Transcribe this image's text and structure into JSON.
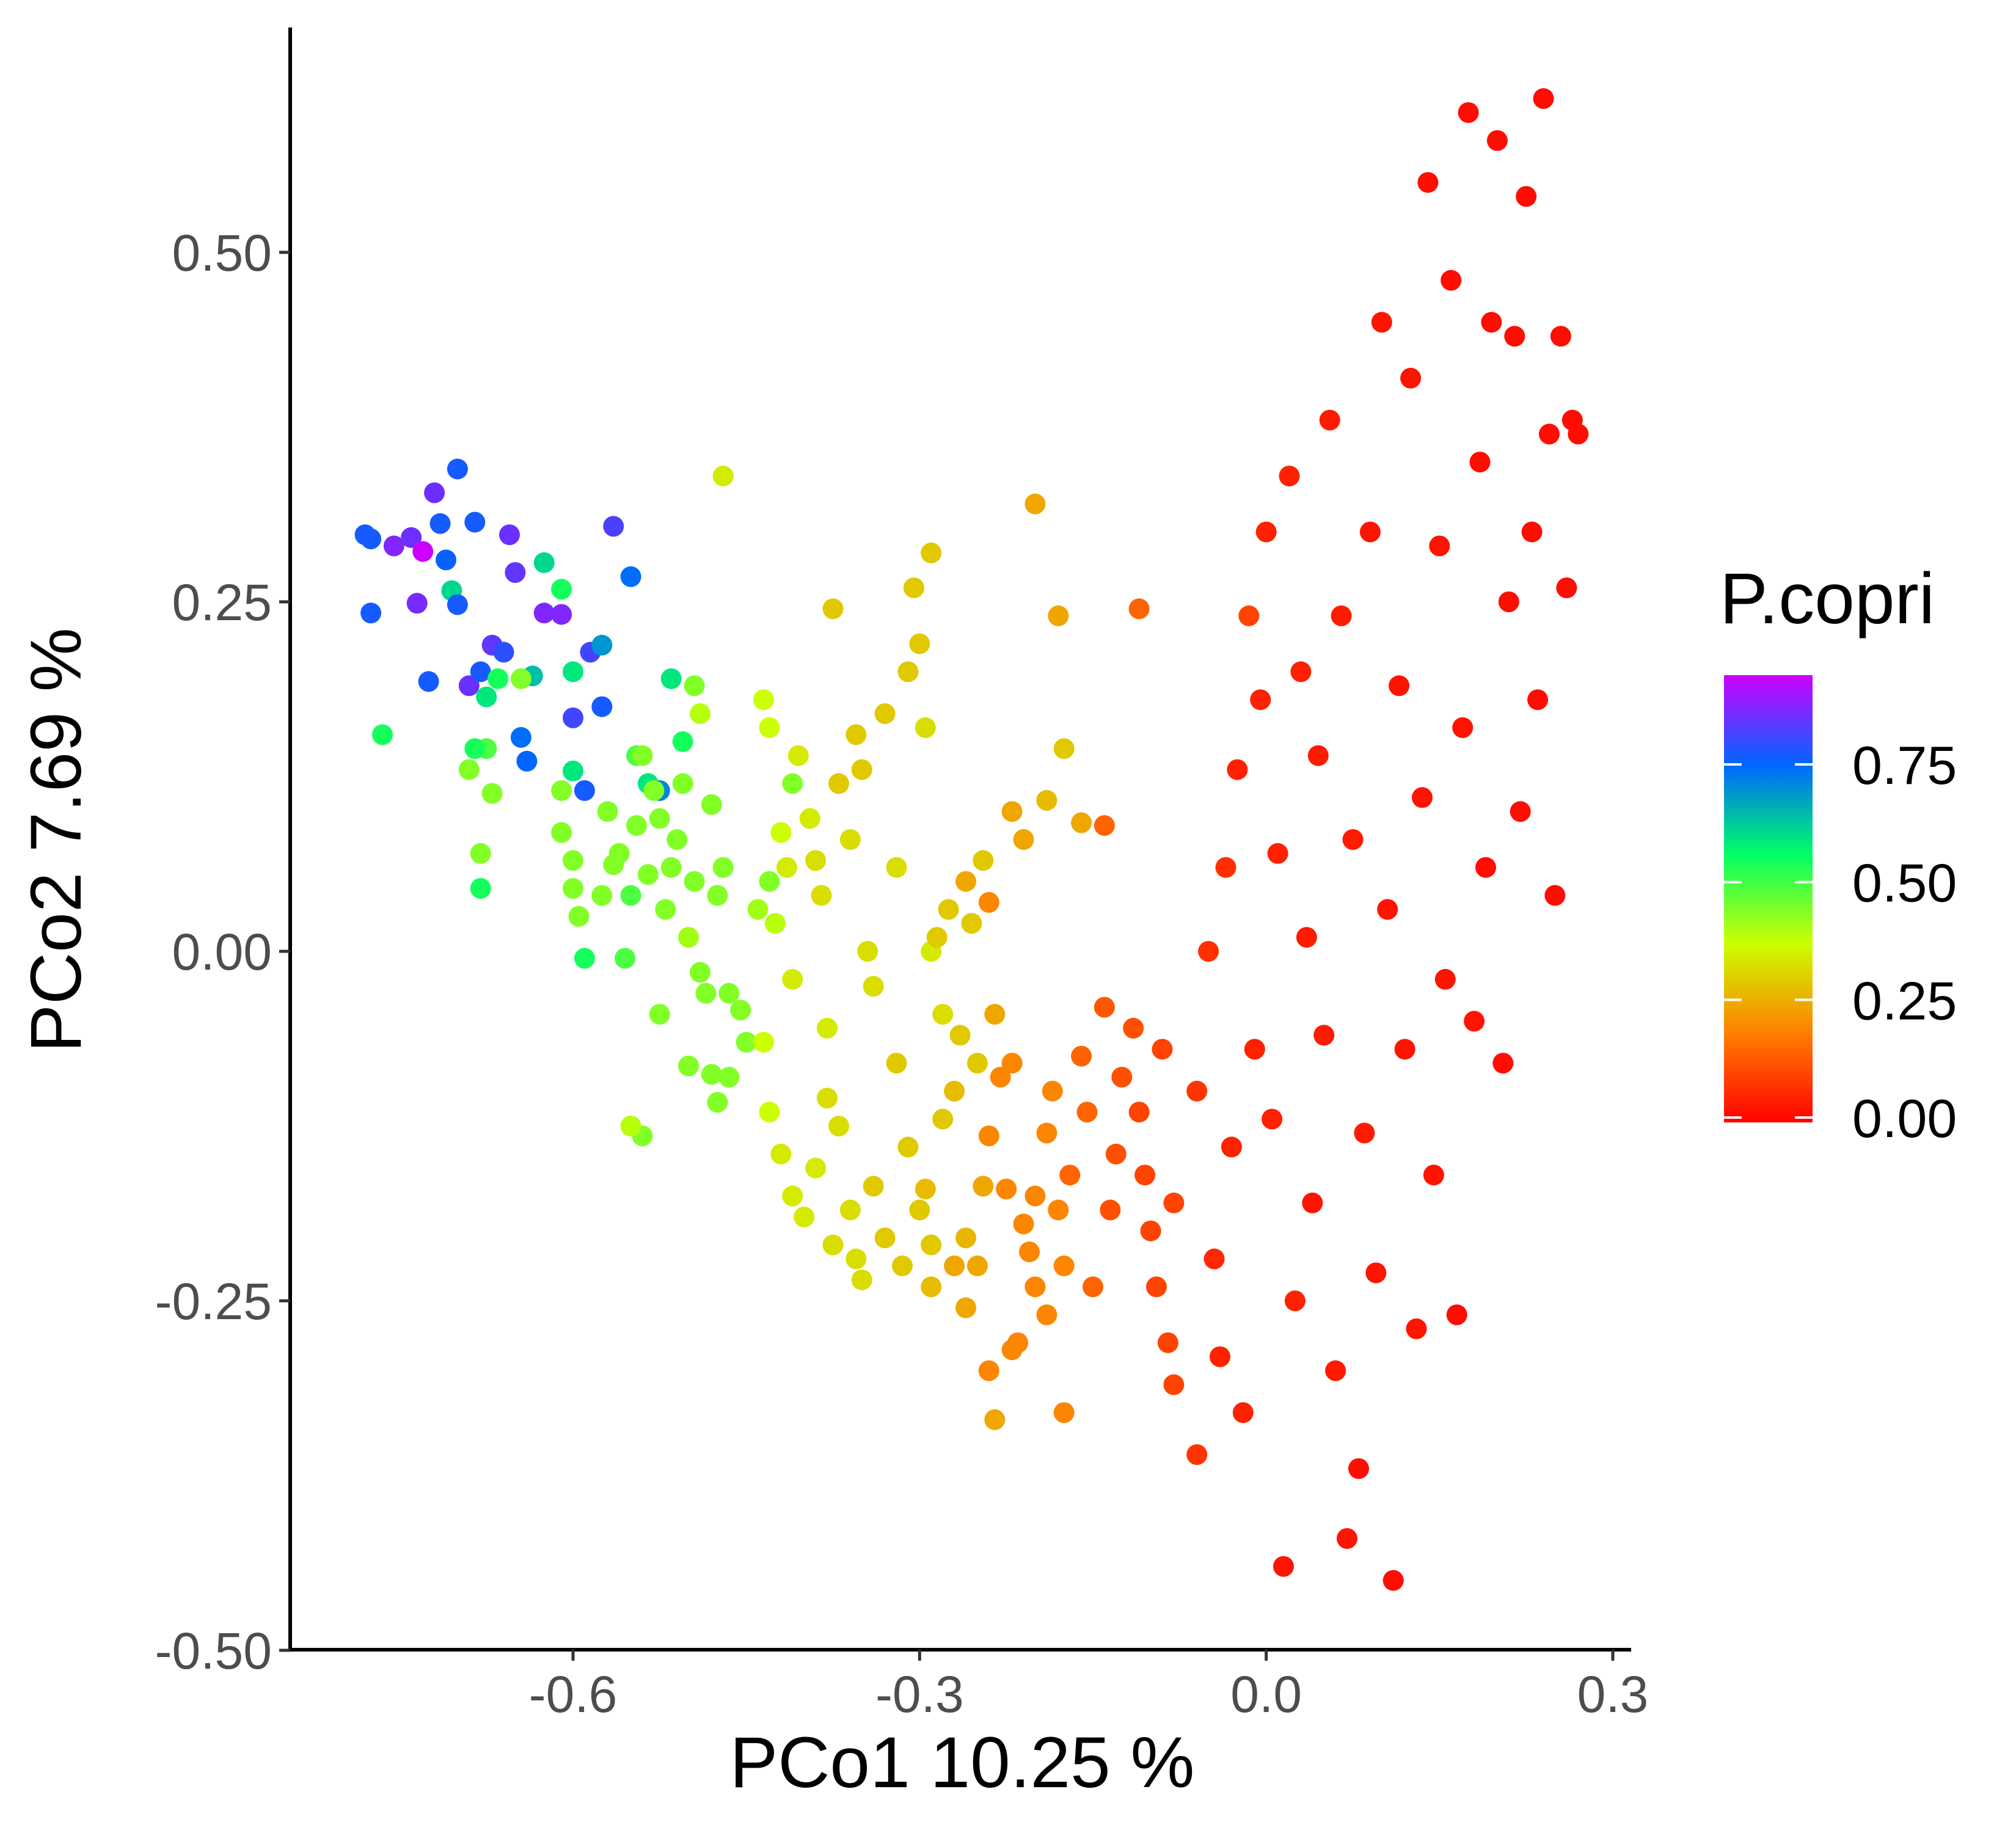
{
  "chart_data": {
    "type": "scatter",
    "title": "",
    "xlabel": "PCo1 10.25 %",
    "ylabel": "PCo2 7.69 %",
    "xlim": [
      -0.82,
      0.34
    ],
    "ylim": [
      -0.505,
      0.66
    ],
    "x_ticks": [
      {
        "value": -0.6,
        "label": "-0.6"
      },
      {
        "value": -0.3,
        "label": "-0.3"
      },
      {
        "value": 0.0,
        "label": "0.0"
      },
      {
        "value": 0.3,
        "label": "0.3"
      }
    ],
    "y_ticks": [
      {
        "value": -0.5,
        "label": "-0.50"
      },
      {
        "value": -0.25,
        "label": "-0.25"
      },
      {
        "value": 0.0,
        "label": "0.00"
      },
      {
        "value": 0.25,
        "label": "0.25"
      },
      {
        "value": 0.5,
        "label": "0.50"
      }
    ],
    "grid": false,
    "legend": {
      "title": "P.copri",
      "placement": "right",
      "type": "colorbar",
      "range": [
        0.0,
        0.95
      ],
      "ticks": [
        {
          "value": 0.0,
          "label": "0.00"
        },
        {
          "value": 0.25,
          "label": "0.25"
        },
        {
          "value": 0.5,
          "label": "0.50"
        },
        {
          "value": 0.75,
          "label": "0.75"
        }
      ],
      "colors": [
        "#ff0000",
        "#ff7f00",
        "#ccff00",
        "#00ff66",
        "#0066ff",
        "#cc00ff"
      ]
    },
    "point_color_by": "P.copri",
    "points": [
      [
        -0.78,
        0.298,
        0.78
      ],
      [
        -0.775,
        0.295,
        0.78
      ],
      [
        -0.775,
        0.242,
        0.78
      ],
      [
        -0.755,
        0.29,
        0.88
      ],
      [
        -0.74,
        0.296,
        0.86
      ],
      [
        -0.735,
        0.249,
        0.87
      ],
      [
        -0.73,
        0.286,
        0.95
      ],
      [
        -0.725,
        0.193,
        0.78
      ],
      [
        -0.72,
        0.328,
        0.86
      ],
      [
        -0.715,
        0.306,
        0.78
      ],
      [
        -0.71,
        0.28,
        0.77
      ],
      [
        -0.705,
        0.258,
        0.62
      ],
      [
        -0.7,
        0.345,
        0.78
      ],
      [
        -0.7,
        0.248,
        0.78
      ],
      [
        -0.69,
        0.19,
        0.86
      ],
      [
        -0.685,
        0.307,
        0.78
      ],
      [
        -0.68,
        0.2,
        0.78
      ],
      [
        -0.675,
        0.182,
        0.6
      ],
      [
        -0.67,
        0.219,
        0.85
      ],
      [
        -0.665,
        0.195,
        0.55
      ],
      [
        -0.66,
        0.214,
        0.8
      ],
      [
        -0.655,
        0.298,
        0.86
      ],
      [
        -0.65,
        0.271,
        0.85
      ],
      [
        -0.645,
        0.153,
        0.75
      ],
      [
        -0.64,
        0.136,
        0.76
      ],
      [
        -0.635,
        0.197,
        0.65
      ],
      [
        -0.625,
        0.278,
        0.62
      ],
      [
        -0.625,
        0.242,
        0.88
      ],
      [
        -0.61,
        0.241,
        0.88
      ],
      [
        -0.61,
        0.259,
        0.55
      ],
      [
        -0.6,
        0.167,
        0.82
      ],
      [
        -0.6,
        0.2,
        0.6
      ],
      [
        -0.6,
        0.129,
        0.6
      ],
      [
        -0.59,
        0.115,
        0.78
      ],
      [
        -0.585,
        0.214,
        0.82
      ],
      [
        -0.575,
        0.219,
        0.7
      ],
      [
        -0.575,
        0.175,
        0.78
      ],
      [
        -0.565,
        0.304,
        0.83
      ],
      [
        -0.55,
        0.268,
        0.75
      ],
      [
        -0.545,
        0.14,
        0.5
      ],
      [
        -0.535,
        0.12,
        0.6
      ],
      [
        -0.525,
        0.115,
        0.72
      ],
      [
        -0.515,
        0.195,
        0.6
      ],
      [
        -0.505,
        0.15,
        0.55
      ],
      [
        -0.495,
        0.19,
        0.45
      ],
      [
        -0.49,
        0.17,
        0.4
      ],
      [
        -0.47,
        0.34,
        0.35
      ],
      [
        -0.765,
        0.155,
        0.55
      ],
      [
        -0.675,
        0.145,
        0.5
      ],
      [
        -0.67,
        0.113,
        0.45
      ],
      [
        -0.68,
        0.07,
        0.45
      ],
      [
        -0.68,
        0.045,
        0.55
      ],
      [
        -0.69,
        0.13,
        0.45
      ],
      [
        -0.685,
        0.145,
        0.55
      ],
      [
        -0.645,
        0.195,
        0.45
      ],
      [
        -0.61,
        0.115,
        0.45
      ],
      [
        -0.61,
        0.085,
        0.45
      ],
      [
        -0.6,
        0.065,
        0.45
      ],
      [
        -0.6,
        0.045,
        0.45
      ],
      [
        -0.595,
        0.025,
        0.45
      ],
      [
        -0.59,
        -0.005,
        0.55
      ],
      [
        -0.575,
        0.04,
        0.45
      ],
      [
        -0.57,
        0.1,
        0.45
      ],
      [
        -0.565,
        0.062,
        0.45
      ],
      [
        -0.56,
        0.07,
        0.45
      ],
      [
        -0.555,
        -0.005,
        0.5
      ],
      [
        -0.55,
        0.04,
        0.5
      ],
      [
        -0.545,
        0.09,
        0.45
      ],
      [
        -0.54,
        0.14,
        0.45
      ],
      [
        -0.535,
        0.055,
        0.45
      ],
      [
        -0.53,
        0.115,
        0.45
      ],
      [
        -0.525,
        0.095,
        0.45
      ],
      [
        -0.52,
        0.03,
        0.45
      ],
      [
        -0.515,
        0.06,
        0.45
      ],
      [
        -0.51,
        0.08,
        0.45
      ],
      [
        -0.505,
        0.12,
        0.45
      ],
      [
        -0.5,
        0.01,
        0.42
      ],
      [
        -0.495,
        0.05,
        0.45
      ],
      [
        -0.49,
        -0.015,
        0.45
      ],
      [
        -0.485,
        -0.03,
        0.45
      ],
      [
        -0.48,
        0.105,
        0.45
      ],
      [
        -0.475,
        0.04,
        0.45
      ],
      [
        -0.47,
        0.06,
        0.45
      ],
      [
        -0.465,
        -0.03,
        0.45
      ],
      [
        -0.525,
        -0.045,
        0.45
      ],
      [
        -0.54,
        -0.132,
        0.45
      ],
      [
        -0.55,
        -0.125,
        0.4
      ],
      [
        -0.5,
        -0.082,
        0.45
      ],
      [
        -0.48,
        -0.088,
        0.45
      ],
      [
        -0.475,
        -0.108,
        0.45
      ],
      [
        -0.465,
        -0.09,
        0.45
      ],
      [
        -0.45,
        -0.065,
        0.45
      ],
      [
        -0.455,
        -0.042,
        0.45
      ],
      [
        -0.44,
        0.03,
        0.42
      ],
      [
        -0.43,
        0.05,
        0.45
      ],
      [
        -0.425,
        0.02,
        0.4
      ],
      [
        -0.435,
        0.18,
        0.38
      ],
      [
        -0.43,
        0.16,
        0.38
      ],
      [
        -0.41,
        0.12,
        0.45
      ],
      [
        -0.42,
        0.085,
        0.38
      ],
      [
        -0.415,
        0.06,
        0.35
      ],
      [
        -0.41,
        -0.02,
        0.35
      ],
      [
        -0.405,
        0.14,
        0.35
      ],
      [
        -0.395,
        0.095,
        0.35
      ],
      [
        -0.39,
        0.065,
        0.33
      ],
      [
        -0.385,
        0.04,
        0.33
      ],
      [
        -0.38,
        -0.055,
        0.35
      ],
      [
        -0.375,
        0.245,
        0.3
      ],
      [
        -0.37,
        0.12,
        0.3
      ],
      [
        -0.36,
        0.08,
        0.33
      ],
      [
        -0.355,
        0.155,
        0.3
      ],
      [
        -0.35,
        0.13,
        0.3
      ],
      [
        -0.345,
        0.0,
        0.33
      ],
      [
        -0.34,
        -0.025,
        0.33
      ],
      [
        -0.33,
        0.17,
        0.3
      ],
      [
        -0.32,
        0.06,
        0.33
      ],
      [
        -0.31,
        0.2,
        0.3
      ],
      [
        -0.305,
        0.26,
        0.3
      ],
      [
        -0.3,
        0.22,
        0.3
      ],
      [
        -0.295,
        0.16,
        0.33
      ],
      [
        -0.29,
        0.285,
        0.3
      ],
      [
        -0.29,
        0.0,
        0.35
      ],
      [
        -0.285,
        0.01,
        0.3
      ],
      [
        -0.28,
        -0.045,
        0.33
      ],
      [
        -0.275,
        0.03,
        0.3
      ],
      [
        -0.265,
        -0.06,
        0.3
      ],
      [
        -0.26,
        0.05,
        0.25
      ],
      [
        -0.255,
        0.02,
        0.3
      ],
      [
        -0.25,
        -0.08,
        0.3
      ],
      [
        -0.245,
        0.065,
        0.3
      ],
      [
        -0.24,
        0.035,
        0.2
      ],
      [
        -0.235,
        -0.045,
        0.25
      ],
      [
        -0.22,
        0.1,
        0.25
      ],
      [
        -0.21,
        0.08,
        0.25
      ],
      [
        -0.2,
        0.32,
        0.25
      ],
      [
        -0.19,
        0.108,
        0.28
      ],
      [
        -0.18,
        0.24,
        0.25
      ],
      [
        -0.175,
        0.145,
        0.3
      ],
      [
        -0.16,
        0.092,
        0.25
      ],
      [
        -0.14,
        0.09,
        0.15
      ],
      [
        -0.11,
        0.245,
        0.15
      ],
      [
        -0.435,
        -0.065,
        0.38
      ],
      [
        -0.43,
        -0.115,
        0.38
      ],
      [
        -0.42,
        -0.145,
        0.35
      ],
      [
        -0.41,
        -0.175,
        0.35
      ],
      [
        -0.4,
        -0.19,
        0.35
      ],
      [
        -0.39,
        -0.155,
        0.35
      ],
      [
        -0.38,
        -0.105,
        0.33
      ],
      [
        -0.375,
        -0.21,
        0.33
      ],
      [
        -0.37,
        -0.125,
        0.33
      ],
      [
        -0.36,
        -0.185,
        0.33
      ],
      [
        -0.355,
        -0.22,
        0.33
      ],
      [
        -0.35,
        -0.235,
        0.33
      ],
      [
        -0.34,
        -0.168,
        0.3
      ],
      [
        -0.33,
        -0.205,
        0.3
      ],
      [
        -0.32,
        -0.08,
        0.3
      ],
      [
        -0.315,
        -0.225,
        0.3
      ],
      [
        -0.31,
        -0.14,
        0.3
      ],
      [
        -0.3,
        -0.185,
        0.3
      ],
      [
        -0.295,
        -0.17,
        0.28
      ],
      [
        -0.29,
        -0.21,
        0.3
      ],
      [
        -0.28,
        -0.12,
        0.3
      ],
      [
        -0.27,
        -0.1,
        0.28
      ],
      [
        -0.26,
        -0.205,
        0.27
      ],
      [
        -0.25,
        -0.225,
        0.25
      ],
      [
        -0.245,
        -0.168,
        0.25
      ],
      [
        -0.24,
        -0.132,
        0.2
      ],
      [
        -0.23,
        -0.09,
        0.2
      ],
      [
        -0.225,
        -0.17,
        0.2
      ],
      [
        -0.22,
        -0.08,
        0.2
      ],
      [
        -0.21,
        -0.195,
        0.2
      ],
      [
        -0.205,
        -0.215,
        0.2
      ],
      [
        -0.2,
        -0.175,
        0.2
      ],
      [
        -0.19,
        -0.13,
        0.2
      ],
      [
        -0.185,
        -0.1,
        0.2
      ],
      [
        -0.18,
        -0.185,
        0.2
      ],
      [
        -0.175,
        -0.225,
        0.2
      ],
      [
        -0.17,
        -0.16,
        0.15
      ],
      [
        -0.16,
        -0.075,
        0.15
      ],
      [
        -0.155,
        -0.115,
        0.15
      ],
      [
        -0.15,
        -0.24,
        0.15
      ],
      [
        -0.14,
        -0.04,
        0.13
      ],
      [
        -0.135,
        -0.185,
        0.12
      ],
      [
        -0.13,
        -0.145,
        0.12
      ],
      [
        -0.125,
        -0.09,
        0.12
      ],
      [
        -0.115,
        -0.055,
        0.12
      ],
      [
        -0.11,
        -0.115,
        0.1
      ],
      [
        -0.105,
        -0.16,
        0.1
      ],
      [
        -0.1,
        -0.2,
        0.1
      ],
      [
        -0.095,
        -0.24,
        0.1
      ],
      [
        -0.09,
        -0.07,
        0.1
      ],
      [
        -0.085,
        -0.28,
        0.1
      ],
      [
        -0.08,
        -0.31,
        0.1
      ],
      [
        -0.24,
        -0.3,
        0.2
      ],
      [
        -0.235,
        -0.335,
        0.25
      ],
      [
        -0.22,
        -0.285,
        0.2
      ],
      [
        -0.215,
        -0.28,
        0.2
      ],
      [
        -0.2,
        -0.24,
        0.2
      ],
      [
        -0.19,
        -0.26,
        0.2
      ],
      [
        -0.175,
        -0.33,
        0.2
      ],
      [
        -0.26,
        -0.255,
        0.25
      ],
      [
        -0.27,
        -0.225,
        0.25
      ],
      [
        -0.29,
        -0.24,
        0.28
      ],
      [
        -0.06,
        -0.36,
        0.08
      ],
      [
        -0.08,
        -0.18,
        0.1
      ],
      [
        -0.06,
        -0.1,
        0.08
      ],
      [
        -0.05,
        0.0,
        0.07
      ],
      [
        -0.045,
        -0.22,
        0.06
      ],
      [
        -0.04,
        -0.29,
        0.05
      ],
      [
        -0.035,
        0.06,
        0.07
      ],
      [
        -0.03,
        -0.14,
        0.05
      ],
      [
        -0.025,
        0.13,
        0.05
      ],
      [
        -0.02,
        -0.33,
        0.05
      ],
      [
        -0.015,
        0.24,
        0.1
      ],
      [
        -0.01,
        -0.07,
        0.05
      ],
      [
        -0.005,
        0.18,
        0.05
      ],
      [
        0.0,
        0.3,
        0.05
      ],
      [
        0.005,
        -0.12,
        0.05
      ],
      [
        0.01,
        0.07,
        0.05
      ],
      [
        0.015,
        -0.44,
        0.03
      ],
      [
        0.02,
        0.34,
        0.05
      ],
      [
        0.025,
        -0.25,
        0.05
      ],
      [
        0.03,
        0.2,
        0.05
      ],
      [
        0.035,
        0.01,
        0.04
      ],
      [
        0.04,
        -0.18,
        0.03
      ],
      [
        0.045,
        0.14,
        0.04
      ],
      [
        0.05,
        -0.06,
        0.04
      ],
      [
        0.055,
        0.38,
        0.04
      ],
      [
        0.06,
        -0.3,
        0.04
      ],
      [
        0.065,
        0.24,
        0.04
      ],
      [
        0.07,
        -0.42,
        0.03
      ],
      [
        0.075,
        0.08,
        0.04
      ],
      [
        0.08,
        -0.37,
        0.02
      ],
      [
        0.085,
        -0.13,
        0.04
      ],
      [
        0.09,
        0.3,
        0.03
      ],
      [
        0.095,
        -0.23,
        0.03
      ],
      [
        0.1,
        0.45,
        0.03
      ],
      [
        0.105,
        0.03,
        0.03
      ],
      [
        0.11,
        -0.45,
        0.02
      ],
      [
        0.115,
        0.19,
        0.03
      ],
      [
        0.12,
        -0.07,
        0.03
      ],
      [
        0.125,
        0.41,
        0.03
      ],
      [
        0.13,
        -0.27,
        0.03
      ],
      [
        0.135,
        0.11,
        0.03
      ],
      [
        0.14,
        0.55,
        0.02
      ],
      [
        0.145,
        -0.16,
        0.03
      ],
      [
        0.15,
        0.29,
        0.03
      ],
      [
        0.155,
        -0.02,
        0.03
      ],
      [
        0.16,
        0.48,
        0.02
      ],
      [
        0.165,
        -0.26,
        0.02
      ],
      [
        0.17,
        0.16,
        0.03
      ],
      [
        0.175,
        0.6,
        0.02
      ],
      [
        0.18,
        -0.05,
        0.03
      ],
      [
        0.185,
        0.35,
        0.02
      ],
      [
        0.19,
        0.06,
        0.02
      ],
      [
        0.195,
        0.45,
        0.02
      ],
      [
        0.2,
        0.58,
        0.02
      ],
      [
        0.205,
        -0.08,
        0.02
      ],
      [
        0.21,
        0.25,
        0.02
      ],
      [
        0.215,
        0.44,
        0.02
      ],
      [
        0.22,
        0.1,
        0.02
      ],
      [
        0.225,
        0.54,
        0.02
      ],
      [
        0.23,
        0.3,
        0.02
      ],
      [
        0.235,
        0.18,
        0.02
      ],
      [
        0.24,
        0.61,
        0.02
      ],
      [
        0.245,
        0.37,
        0.02
      ],
      [
        0.25,
        0.04,
        0.02
      ],
      [
        0.255,
        0.44,
        0.02
      ],
      [
        0.26,
        0.26,
        0.02
      ],
      [
        0.265,
        0.38,
        0.02
      ],
      [
        0.27,
        0.37,
        0.02
      ]
    ]
  }
}
